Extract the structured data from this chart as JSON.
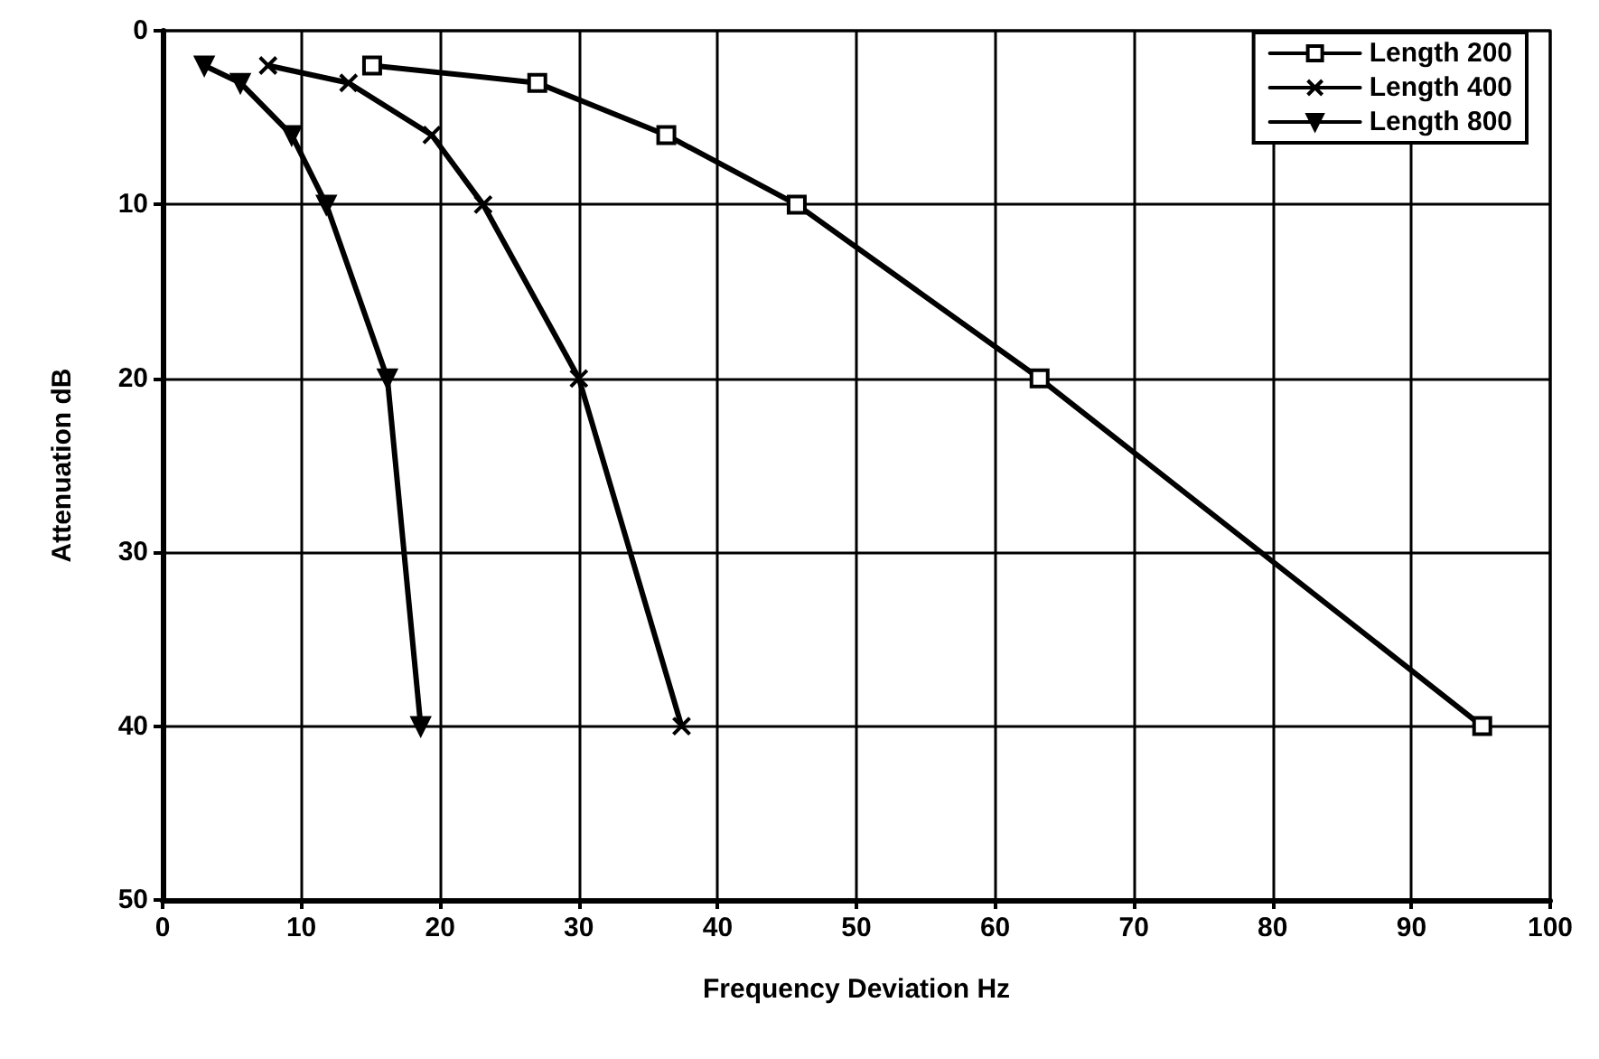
{
  "chart_data": {
    "type": "line",
    "xlabel": "Frequency Deviation Hz",
    "ylabel": "Attenuation dB",
    "xlim": [
      0,
      100
    ],
    "xticks": [
      0,
      10,
      20,
      30,
      40,
      50,
      60,
      70,
      80,
      90,
      100
    ],
    "ylim": [
      50,
      0
    ],
    "yticks": [
      0,
      10,
      20,
      30,
      40,
      50
    ],
    "grid": true,
    "legend": "top right",
    "line_style": "solid",
    "series": [
      {
        "name": "Length 200",
        "color": "#000000",
        "marker": "square",
        "x": [
          15.1,
          27,
          36.3,
          45.7,
          63.2,
          95.1
        ],
        "values": [
          2,
          3,
          6,
          10,
          20,
          40
        ]
      },
      {
        "name": "Length 400",
        "color": "#000000",
        "marker": "cross",
        "x": [
          7.6,
          13.4,
          19.4,
          23.1,
          30,
          37.4
        ],
        "values": [
          2,
          3,
          6,
          10,
          20,
          40
        ]
      },
      {
        "name": "Length 800",
        "color": "#000000",
        "marker": "triangle",
        "x": [
          3,
          5.6,
          9.3,
          11.8,
          16.2,
          18.6
        ],
        "values": [
          2,
          3,
          6,
          10,
          20,
          40
        ]
      }
    ]
  }
}
